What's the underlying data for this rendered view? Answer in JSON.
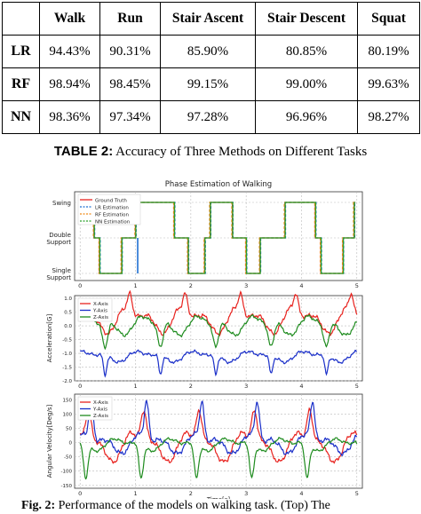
{
  "table": {
    "columns": [
      "",
      "Walk",
      "Run",
      "Stair Ascent",
      "Stair Descent",
      "Squat"
    ],
    "rows": [
      {
        "method": "LR",
        "values": [
          "94.43%",
          "90.31%",
          "85.90%",
          "80.85%",
          "80.19%"
        ]
      },
      {
        "method": "RF",
        "values": [
          "98.94%",
          "98.45%",
          "99.15%",
          "99.00%",
          "99.63%"
        ]
      },
      {
        "method": "NN",
        "values": [
          "98.36%",
          "97.34%",
          "97.28%",
          "96.96%",
          "98.27%"
        ]
      }
    ],
    "caption_label": "TABLE 2:",
    "caption_text": "Accuracy of Three Methods on Different Tasks"
  },
  "chart_data": [
    {
      "type": "line",
      "title": "Phase Estimation of Walking",
      "xlabel": "",
      "ylabel": "",
      "xlim": [
        -0.1,
        5.1
      ],
      "x_ticks": [
        "0",
        "1",
        "2",
        "3",
        "4",
        "5"
      ],
      "y_ticks": [
        "Swing",
        "Double Support",
        "Single Support"
      ],
      "legend": [
        "Ground Truth",
        "LR Estimation",
        "RF Estimation",
        "NN Estimation"
      ],
      "legend_position": "top-left",
      "grid": true,
      "phase_sequence": {
        "x": [
          0,
          0.25,
          0.35,
          0.45,
          0.75,
          1.0,
          1.05,
          1.25,
          1.7,
          1.95,
          2.25,
          2.35,
          2.45,
          2.75,
          3.0,
          3.05,
          3.25,
          3.7,
          3.95,
          4.25,
          4.35,
          4.45,
          4.75,
          4.95
        ],
        "phase": [
          0,
          1,
          2,
          2,
          1,
          0,
          0,
          0,
          1,
          2,
          1,
          0,
          0,
          1,
          2,
          2,
          1,
          0,
          0,
          1,
          2,
          2,
          1,
          0
        ]
      }
    },
    {
      "type": "line",
      "title": "",
      "xlabel": "",
      "ylabel": "Acceleration[G]",
      "xlim": [
        -0.1,
        5.1
      ],
      "ylim": [
        -2.0,
        1.1
      ],
      "x_ticks": [
        "0",
        "1",
        "2",
        "3",
        "4",
        "5"
      ],
      "y_ticks": [
        "1.0",
        "0.5",
        "0.0",
        "-0.5",
        "-1.0",
        "-1.5",
        "-2.0"
      ],
      "legend": [
        "X-Axis",
        "Y-Axis",
        "Z-Axis"
      ],
      "legend_position": "top-left",
      "grid": true
    },
    {
      "type": "line",
      "title": "",
      "xlabel": "Time[s]",
      "ylabel": "Angular Velocity[Deg/s]",
      "xlim": [
        -0.1,
        5.1
      ],
      "ylim": [
        -160,
        170
      ],
      "x_ticks": [
        "0",
        "1",
        "2",
        "3",
        "4",
        "5"
      ],
      "y_ticks": [
        "150",
        "100",
        "50",
        "0",
        "-50",
        "-100",
        "-150"
      ],
      "legend": [
        "X-Axis",
        "Y-Axis",
        "Z-Axis"
      ],
      "legend_position": "top-left",
      "grid": true
    }
  ],
  "colors": {
    "ground_truth": "#e8231f",
    "lr": "#1f6fd1",
    "rf": "#f08a18",
    "nn": "#2aa02a",
    "x_axis": "#e8231f",
    "y_axis": "#1a2fc9",
    "z_axis": "#1f8c1f"
  },
  "figure_caption": {
    "label": "Fig. 2:",
    "text": "Performance of the models on walking task. (Top) The"
  }
}
